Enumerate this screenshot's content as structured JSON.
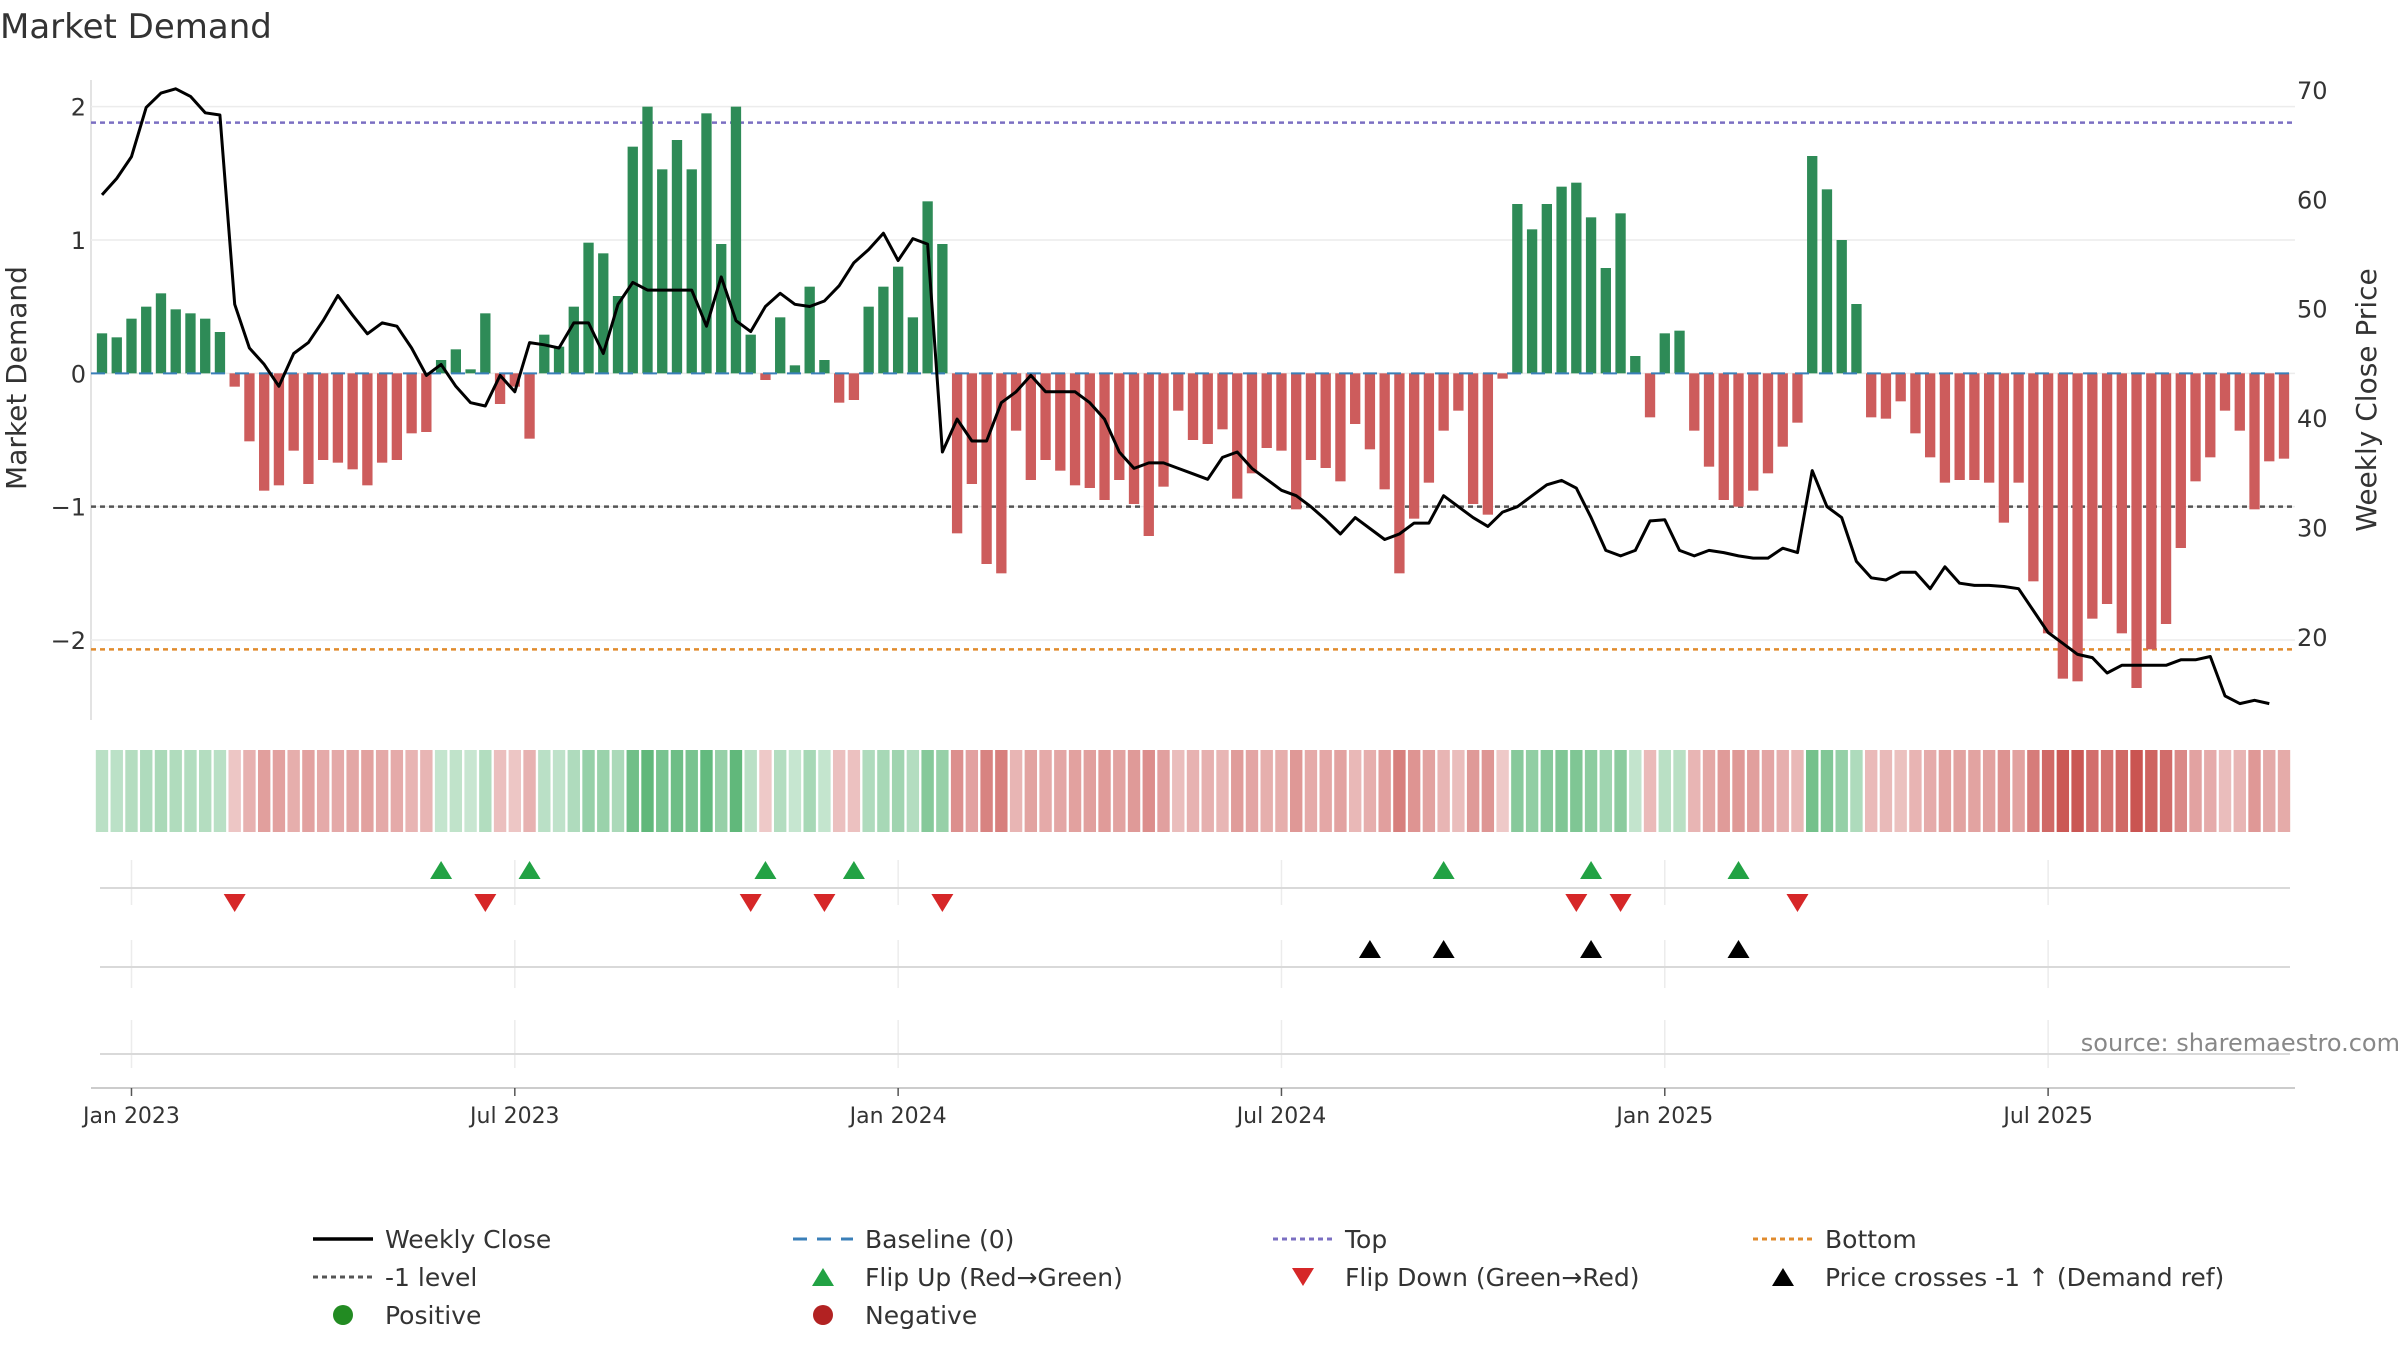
{
  "chart_data": {
    "type": "bar",
    "title": "Market Demand",
    "ylabel_left": "Market Demand",
    "ylabel_right": "Weekly Close Price",
    "ylim_left": [
      -2.6,
      2.2
    ],
    "ylim_right": [
      12.5,
      71
    ],
    "yticks_left": [
      2,
      1,
      0,
      -1,
      -2
    ],
    "ytick_labels_left": [
      "2",
      "1",
      "0",
      "−1",
      "−2"
    ],
    "yticks_right": [
      70,
      60,
      50,
      40,
      30,
      20
    ],
    "x_ticks": [
      {
        "label": "Jan 2023",
        "week": 2
      },
      {
        "label": "Jul 2023",
        "week": 28
      },
      {
        "label": "Jan 2024",
        "week": 54
      },
      {
        "label": "Jul 2024",
        "week": 80
      },
      {
        "label": "Jan 2025",
        "week": 106
      },
      {
        "label": "Jul 2025",
        "week": 132
      }
    ],
    "levels": {
      "top": 1.88,
      "minus_one": -1,
      "bottom": -2.07,
      "baseline": 0
    },
    "demand": [
      0.3,
      0.27,
      0.41,
      0.5,
      0.6,
      0.48,
      0.45,
      0.41,
      0.31,
      -0.1,
      -0.51,
      -0.88,
      -0.84,
      -0.58,
      -0.83,
      -0.65,
      -0.67,
      -0.72,
      -0.84,
      -0.67,
      -0.65,
      -0.45,
      -0.44,
      0.1,
      0.18,
      0.03,
      0.45,
      -0.23,
      -0.1,
      -0.49,
      0.29,
      0.2,
      0.5,
      0.98,
      0.9,
      0.58,
      1.7,
      2.0,
      1.53,
      1.75,
      1.53,
      1.95,
      0.97,
      2.0,
      0.29,
      -0.05,
      0.42,
      0.06,
      0.65,
      0.1,
      -0.22,
      -0.2,
      0.5,
      0.65,
      0.8,
      0.42,
      1.29,
      0.97,
      -1.2,
      -0.83,
      -1.43,
      -1.5,
      -0.43,
      -0.8,
      -0.65,
      -0.73,
      -0.84,
      -0.86,
      -0.95,
      -0.8,
      -0.98,
      -1.22,
      -0.85,
      -0.28,
      -0.5,
      -0.53,
      -0.42,
      -0.94,
      -0.75,
      -0.56,
      -0.58,
      -1.02,
      -0.65,
      -0.71,
      -0.81,
      -0.38,
      -0.57,
      -0.87,
      -1.5,
      -1.09,
      -0.82,
      -0.43,
      -0.28,
      -0.98,
      -1.06,
      -0.04,
      1.27,
      1.08,
      1.27,
      1.4,
      1.43,
      1.17,
      0.79,
      1.2,
      0.13,
      -0.33,
      0.3,
      0.32,
      -0.43,
      -0.7,
      -0.95,
      -1.0,
      -0.88,
      -0.75,
      -0.55,
      -0.37,
      1.63,
      1.38,
      1.0,
      0.52,
      -0.33,
      -0.34,
      -0.21,
      -0.45,
      -0.63,
      -0.82,
      -0.8,
      -0.8,
      -0.82,
      -1.12,
      -0.82,
      -1.56,
      -1.95,
      -2.29,
      -2.31,
      -1.84,
      -1.73,
      -1.95,
      -2.36,
      -2.07,
      -1.88,
      -1.31,
      -0.81,
      -0.63,
      -0.28,
      -0.43,
      -1.02,
      -0.66,
      -0.64
    ],
    "close": [
      60.5,
      62,
      64,
      68.5,
      69.8,
      70.2,
      69.5,
      68,
      67.8,
      50.5,
      46.5,
      45,
      43,
      46,
      47,
      49,
      51.3,
      49.5,
      47.8,
      48.8,
      48.5,
      46.5,
      44,
      45,
      43,
      41.5,
      41.2,
      44,
      42.5,
      47,
      46.8,
      46.5,
      48.8,
      48.8,
      46,
      50.5,
      52.5,
      51.8,
      51.8,
      51.8,
      51.8,
      48.5,
      53,
      49,
      48,
      50.3,
      51.5,
      50.5,
      50.3,
      50.8,
      52.2,
      54.3,
      55.5,
      57,
      54.5,
      56.5,
      56,
      37,
      40,
      38,
      38,
      41.5,
      42.5,
      44,
      42.5,
      42.5,
      42.5,
      41.5,
      40,
      37,
      35.5,
      36,
      36,
      35.5,
      35,
      34.5,
      36.5,
      37,
      35.5,
      34.5,
      33.5,
      33,
      32,
      30.8,
      29.5,
      31,
      30,
      29,
      29.5,
      30.5,
      30.5,
      33,
      32,
      31,
      30.2,
      31.5,
      32,
      33,
      34,
      34.4,
      33.7,
      31,
      28,
      27.5,
      28,
      30.7,
      30.8,
      28,
      27.5,
      28,
      27.8,
      27.5,
      27.3,
      27.3,
      28.2,
      27.8,
      35.3,
      32,
      31,
      27,
      25.5,
      25.3,
      26,
      26,
      24.5,
      26.5,
      25,
      24.8,
      24.8,
      24.7,
      24.5,
      22.5,
      20.5,
      19.5,
      18.5,
      18.2,
      16.8,
      17.5,
      17.5,
      17.5,
      17.5,
      18,
      18,
      18.3,
      14.7,
      14,
      14.3,
      14
    ],
    "flip_up_weeks": [
      23,
      29,
      45,
      51,
      91,
      101,
      111
    ],
    "flip_down_weeks": [
      9,
      26,
      44,
      49,
      57,
      100,
      103,
      115
    ],
    "price_cross_weeks": [
      86,
      91,
      101,
      111
    ],
    "legend": [
      {
        "label": "Weekly Close",
        "marker": "solid-line",
        "color": "#000000"
      },
      {
        "label": "Baseline (0)",
        "marker": "dash-line",
        "color": "#3a7fb8"
      },
      {
        "label": "Top",
        "marker": "dot-line",
        "color": "#7b6fc2"
      },
      {
        "label": "Bottom",
        "marker": "dot-line",
        "color": "#e08b2d"
      },
      {
        "label": "-1 level",
        "marker": "dot-line",
        "color": "#555555"
      },
      {
        "label": "Flip Up (Red→Green)",
        "marker": "triangle-up",
        "color": "#22a244"
      },
      {
        "label": "Flip Down (Green→Red)",
        "marker": "triangle-down",
        "color": "#d62728"
      },
      {
        "label": "Price crosses -1 ↑ (Demand ref)",
        "marker": "triangle-up",
        "color": "#000000"
      },
      {
        "label": "Positive",
        "marker": "circle",
        "color": "#228b22"
      },
      {
        "label": "Negative",
        "marker": "circle",
        "color": "#b22222"
      }
    ],
    "source": "source: sharemaestro.com"
  },
  "colors": {
    "positive": "#2e8b57",
    "negative": "#cd5c5c",
    "flip_up": "#22a244",
    "flip_down": "#d62728",
    "price": "#000000",
    "top": "#7b6fc2",
    "bottom": "#e08b2d",
    "minus_one": "#555555",
    "baseline": "#3a7fb8"
  }
}
